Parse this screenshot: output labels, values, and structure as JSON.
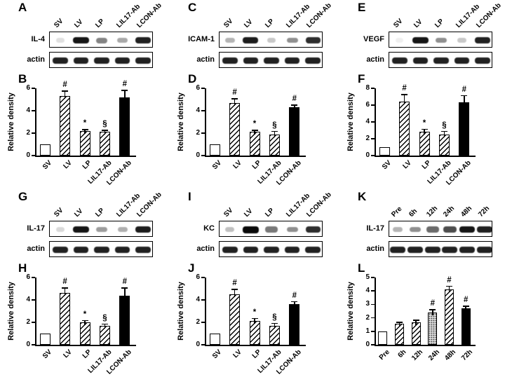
{
  "figure": {
    "background": "#ffffff",
    "ink": "#000000",
    "panel_letters": [
      "A",
      "B",
      "C",
      "D",
      "E",
      "F",
      "G",
      "H",
      "I",
      "J",
      "K",
      "L"
    ]
  },
  "groups": [
    {
      "chart_index": 0,
      "blot": {
        "letter": "A",
        "protein": "IL-4",
        "loading": "actin",
        "lanes": [
          "SV",
          "LV",
          "LP",
          "LIL17-Ab",
          "LCON-Ab"
        ],
        "band_intensities": [
          0.12,
          0.95,
          0.5,
          0.35,
          0.9
        ],
        "loading_intensities": [
          0.9,
          0.9,
          0.9,
          0.9,
          0.9
        ]
      }
    },
    {
      "chart_index": 1,
      "blot": {
        "letter": "C",
        "protein": "ICAM-1",
        "loading": "actin",
        "lanes": [
          "SV",
          "LV",
          "LP",
          "LIL17-Ab",
          "LCON-Ab"
        ],
        "band_intensities": [
          0.3,
          0.92,
          0.22,
          0.45,
          0.85
        ],
        "loading_intensities": [
          0.9,
          0.9,
          0.9,
          0.9,
          0.9
        ]
      }
    },
    {
      "chart_index": 2,
      "blot": {
        "letter": "E",
        "protein": "VEGF",
        "loading": "actin",
        "lanes": [
          "SV",
          "LV",
          "LP",
          "LIL17-Ab",
          "LCON-Ab"
        ],
        "band_intensities": [
          0.06,
          0.95,
          0.45,
          0.22,
          0.9
        ],
        "loading_intensities": [
          0.9,
          0.9,
          0.9,
          0.9,
          0.9
        ]
      }
    },
    {
      "chart_index": 3,
      "blot": {
        "letter": "G",
        "protein": "IL-17",
        "loading": "actin",
        "lanes": [
          "SV",
          "LV",
          "LP",
          "LIL17-Ab",
          "LCON-Ab"
        ],
        "band_intensities": [
          0.15,
          0.95,
          0.4,
          0.32,
          0.92
        ],
        "loading_intensities": [
          0.9,
          0.9,
          0.9,
          0.9,
          0.9
        ]
      }
    },
    {
      "chart_index": 4,
      "blot": {
        "letter": "I",
        "protein": "KC",
        "loading": "actin",
        "lanes": [
          "SV",
          "LV",
          "LP",
          "LIL17-Ab",
          "LCON-Ab"
        ],
        "band_intensities": [
          0.25,
          1.0,
          0.55,
          0.45,
          0.85
        ],
        "loading_intensities": [
          0.9,
          0.9,
          0.9,
          0.9,
          0.9
        ]
      }
    },
    {
      "chart_index": 5,
      "blot": {
        "letter": "K",
        "protein": "IL-17",
        "loading": "actin",
        "lanes": [
          "Pre",
          "6h",
          "12h",
          "24h",
          "48h",
          "72h"
        ],
        "band_intensities": [
          0.3,
          0.45,
          0.6,
          0.72,
          0.95,
          0.9
        ],
        "loading_intensities": [
          0.9,
          0.9,
          0.9,
          0.9,
          0.9,
          0.9
        ]
      }
    }
  ],
  "chart_data": [
    {
      "letter": "B",
      "type": "bar",
      "title": "",
      "ylabel": "Relative density",
      "xlabel": "",
      "ylim": [
        0,
        6
      ],
      "yticks": [
        0,
        2,
        4,
        6
      ],
      "grid": false,
      "legend": "none",
      "categories": [
        "SV",
        "LV",
        "LP",
        "LIL17-Ab",
        "LCON-Ab"
      ],
      "values": [
        1.0,
        5.3,
        2.2,
        2.1,
        5.2
      ],
      "errors": [
        0,
        0.5,
        0.15,
        0.2,
        0.65
      ],
      "sig": [
        "",
        "#",
        "*",
        "§",
        "#"
      ],
      "fills": [
        "open",
        "hatch",
        "hatch",
        "hatch",
        "solid"
      ]
    },
    {
      "letter": "D",
      "type": "bar",
      "title": "",
      "ylabel": "Relative density",
      "xlabel": "",
      "ylim": [
        0,
        6
      ],
      "yticks": [
        0,
        2,
        4,
        6
      ],
      "grid": false,
      "legend": "none",
      "categories": [
        "SV",
        "LV",
        "LP",
        "LIL17-Ab",
        "LCON-Ab"
      ],
      "values": [
        1.0,
        4.7,
        2.1,
        1.9,
        4.3
      ],
      "errors": [
        0,
        0.4,
        0.2,
        0.3,
        0.25
      ],
      "sig": [
        "",
        "#",
        "*",
        "§",
        "#"
      ],
      "fills": [
        "open",
        "hatch",
        "hatch",
        "hatch",
        "solid"
      ]
    },
    {
      "letter": "F",
      "type": "bar",
      "title": "",
      "ylabel": "Relative density",
      "xlabel": "",
      "ylim": [
        0,
        8
      ],
      "yticks": [
        0,
        2,
        4,
        6,
        8
      ],
      "grid": false,
      "legend": "none",
      "categories": [
        "SV",
        "LV",
        "LP",
        "LIL17-Ab",
        "LCON-Ab"
      ],
      "values": [
        1.0,
        6.4,
        2.8,
        2.5,
        6.3
      ],
      "errors": [
        0,
        0.9,
        0.4,
        0.45,
        0.9
      ],
      "sig": [
        "",
        "#",
        "*",
        "§",
        "#"
      ],
      "fills": [
        "open",
        "hatch",
        "hatch",
        "hatch",
        "solid"
      ]
    },
    {
      "letter": "H",
      "type": "bar",
      "title": "",
      "ylabel": "Relative density",
      "xlabel": "",
      "ylim": [
        0,
        6
      ],
      "yticks": [
        0,
        2,
        4,
        6
      ],
      "grid": false,
      "legend": "none",
      "categories": [
        "SV",
        "LV",
        "LP",
        "LIL17-Ab",
        "LCON-Ab"
      ],
      "values": [
        1.0,
        4.6,
        2.0,
        1.7,
        4.4
      ],
      "errors": [
        0,
        0.5,
        0.2,
        0.2,
        0.7
      ],
      "sig": [
        "",
        "#",
        "*",
        "§",
        "#"
      ],
      "fills": [
        "open",
        "hatch",
        "hatch",
        "hatch",
        "solid"
      ]
    },
    {
      "letter": "J",
      "type": "bar",
      "title": "",
      "ylabel": "Relative density",
      "xlabel": "",
      "ylim": [
        0,
        6
      ],
      "yticks": [
        0,
        2,
        4,
        6
      ],
      "grid": false,
      "legend": "none",
      "categories": [
        "SV",
        "LV",
        "LP",
        "LIL17-Ab",
        "LCON-Ab"
      ],
      "values": [
        1.0,
        4.5,
        2.1,
        1.7,
        3.6
      ],
      "errors": [
        0,
        0.5,
        0.3,
        0.25,
        0.3
      ],
      "sig": [
        "",
        "#",
        "*",
        "§",
        "#"
      ],
      "fills": [
        "open",
        "hatch",
        "hatch",
        "hatch",
        "solid"
      ]
    },
    {
      "letter": "L",
      "type": "bar",
      "title": "",
      "ylabel": "Relative density",
      "xlabel": "",
      "ylim": [
        0,
        5
      ],
      "yticks": [
        0,
        1,
        2,
        3,
        4,
        5
      ],
      "grid": false,
      "legend": "none",
      "categories": [
        "Pre",
        "6h",
        "12h",
        "24h",
        "48h",
        "72h"
      ],
      "values": [
        1.0,
        1.55,
        1.65,
        2.4,
        4.1,
        2.7
      ],
      "errors": [
        0,
        0.15,
        0.2,
        0.25,
        0.3,
        0.2
      ],
      "sig": [
        "",
        "",
        "",
        "#",
        "#",
        "#"
      ],
      "fills": [
        "open",
        "hatch",
        "hatch",
        "stipple",
        "hatch",
        "solid"
      ]
    }
  ]
}
